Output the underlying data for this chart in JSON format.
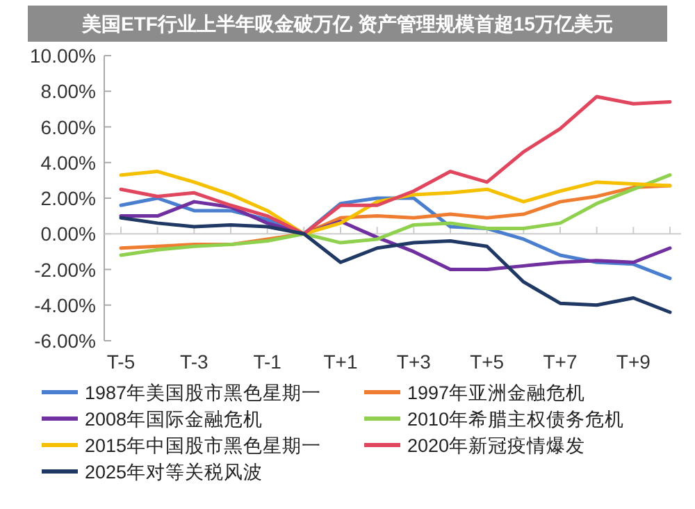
{
  "chart_data": {
    "type": "line",
    "title": "美国ETF行业上半年吸金破万亿 资产管理规模首超15万亿美元",
    "categories": [
      "T-5",
      null,
      "T-3",
      null,
      "T-1",
      null,
      "T+1",
      null,
      "T+3",
      null,
      "T+5",
      null,
      "T+7",
      null,
      "T+9",
      null
    ],
    "ylim": [
      -6,
      10
    ],
    "yticks": [
      {
        "value": -6,
        "label": "-6.00%"
      },
      {
        "value": -4,
        "label": "-4.00%"
      },
      {
        "value": -2,
        "label": "-2.00%"
      },
      {
        "value": 0,
        "label": "0.00%"
      },
      {
        "value": 2,
        "label": "2.00%"
      },
      {
        "value": 4,
        "label": "4.00%"
      },
      {
        "value": 6,
        "label": "6.00%"
      },
      {
        "value": 8,
        "label": "8.00%"
      },
      {
        "value": 10,
        "label": "10.00%"
      }
    ],
    "legend": "bottom",
    "marker": "none",
    "line_style": "solid",
    "series": [
      {
        "name": "1987年美国股市黑色星期一",
        "color": "#4a7fcf",
        "values": [
          1.6,
          2.0,
          1.3,
          1.3,
          0.8,
          0,
          1.7,
          2.0,
          2.0,
          0.4,
          0.3,
          -0.3,
          -1.2,
          -1.6,
          -1.7,
          -2.5
        ]
      },
      {
        "name": "1997年亚洲金融危机",
        "color": "#ef7d31",
        "values": [
          -0.8,
          -0.7,
          -0.6,
          -0.6,
          -0.3,
          0,
          0.9,
          1.0,
          0.9,
          1.1,
          0.9,
          1.1,
          1.8,
          2.1,
          2.6,
          2.7
        ]
      },
      {
        "name": "2008年国际金融危机",
        "color": "#7030a0",
        "values": [
          1.0,
          1.0,
          1.8,
          1.5,
          0.6,
          0,
          0.7,
          -0.2,
          -1.0,
          -2.0,
          -2.0,
          -1.8,
          -1.6,
          -1.5,
          -1.6,
          -0.8
        ]
      },
      {
        "name": "2010年希腊主权债务危机",
        "color": "#8fd14f",
        "values": [
          -1.2,
          -0.9,
          -0.7,
          -0.6,
          -0.4,
          0,
          -0.5,
          -0.3,
          0.5,
          0.6,
          0.3,
          0.3,
          0.6,
          1.7,
          2.5,
          3.3
        ]
      },
      {
        "name": "2015年中国股市黑色星期一",
        "color": "#f5c000",
        "values": [
          3.3,
          3.5,
          2.9,
          2.2,
          1.3,
          0,
          0.6,
          1.8,
          2.2,
          2.3,
          2.5,
          1.8,
          2.4,
          2.9,
          2.8,
          2.7
        ]
      },
      {
        "name": "2020年新冠疫情爆发",
        "color": "#e0475f",
        "values": [
          2.5,
          2.1,
          2.3,
          1.6,
          1.0,
          0,
          1.6,
          1.6,
          2.4,
          3.5,
          2.9,
          4.6,
          5.9,
          7.7,
          7.3,
          7.4
        ]
      },
      {
        "name": "2025年对等关税风波",
        "color": "#1f3864",
        "values": [
          0.9,
          0.6,
          0.4,
          0.5,
          0.4,
          0,
          -1.6,
          -0.8,
          -0.5,
          -0.4,
          -0.7,
          -2.7,
          -3.9,
          -4.0,
          -3.6,
          -4.4
        ]
      }
    ]
  }
}
